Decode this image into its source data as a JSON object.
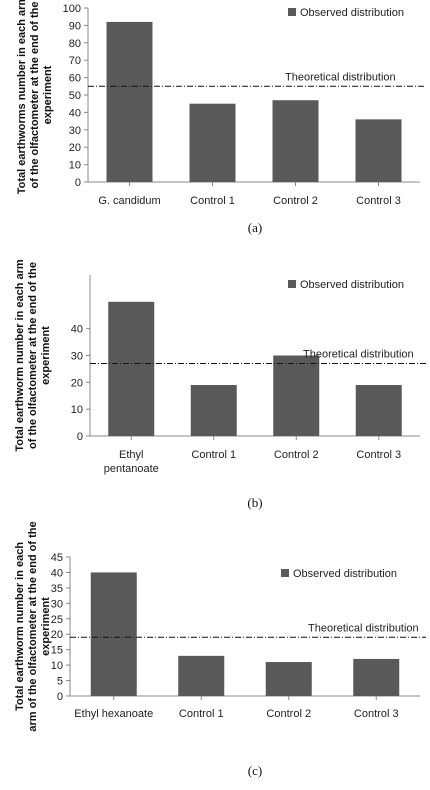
{
  "bar_color": "#595959",
  "chart_data": [
    {
      "type": "bar",
      "panel_label": "(a)",
      "categories": [
        "G. candidum",
        "Control 1",
        "Control 2",
        "Control 3"
      ],
      "series": [
        {
          "name": "Observed distribution",
          "values": [
            92,
            45,
            47,
            36
          ]
        }
      ],
      "theoretical": {
        "label": "Theoretical distribution",
        "value": 55
      },
      "ylabel_lines": [
        "Total earthworms number in each arm",
        "of the olfactometer at the end of the",
        "experiment"
      ],
      "yticks": [
        0,
        10,
        20,
        30,
        40,
        50,
        60,
        70,
        80,
        90,
        100
      ],
      "ylim": [
        0,
        100
      ],
      "grid": false,
      "legend": "top-right"
    },
    {
      "type": "bar",
      "panel_label": "(b)",
      "categories": [
        [
          "Ethyl",
          "pentanoate"
        ],
        "Control 1",
        "Control 2",
        "Control 3"
      ],
      "series": [
        {
          "name": "Observed distribution",
          "values": [
            50,
            19,
            30,
            19
          ]
        }
      ],
      "theoretical": {
        "label": "Theoretical distribution",
        "value": 27
      },
      "ylabel_lines": [
        "Total earthworm number in each arm",
        "of the olfactometer at the end of the",
        "experiment"
      ],
      "yticks": [
        0,
        10,
        20,
        30,
        40
      ],
      "ylim": [
        0,
        60
      ],
      "grid": false,
      "legend": "top-right"
    },
    {
      "type": "bar",
      "panel_label": "(c)",
      "categories": [
        "Ethyl hexanoate",
        "Control 1",
        "Control 2",
        "Control 3"
      ],
      "series": [
        {
          "name": "Observed distribution",
          "values": [
            40,
            13,
            11,
            12
          ]
        }
      ],
      "theoretical": {
        "label": "Theoretical distribution",
        "value": 19
      },
      "ylabel_lines": [
        "Total earthworm number in each",
        "arm of the olfactometer  at the end of the",
        "experiment"
      ],
      "yticks": [
        0,
        5,
        10,
        15,
        20,
        25,
        30,
        35,
        40,
        45
      ],
      "ylim": [
        0,
        45
      ],
      "grid": false,
      "legend": "top-right"
    }
  ]
}
